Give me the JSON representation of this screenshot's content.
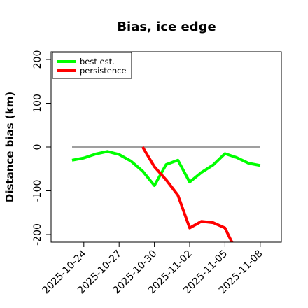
{
  "chart_data": {
    "type": "line",
    "title": "Bias, ice edge",
    "xlabel": "",
    "ylabel": "Distance bias (km)",
    "ylim": [
      -215,
      215
    ],
    "yticks": [
      -200,
      -100,
      0,
      100,
      200
    ],
    "xticks": [
      "2025-10-24",
      "2025-10-27",
      "2025-10-30",
      "2025-11-02",
      "2025-11-05",
      "2025-11-08"
    ],
    "x_start": "2025-10-22",
    "grid": false,
    "legend_position": "top-left",
    "reference_line": {
      "y": 0,
      "x_from": "2025-10-23",
      "x_to": "2025-11-08",
      "color": "#666666"
    },
    "series": [
      {
        "name": "best est.",
        "color": "#00ff00",
        "points": [
          [
            "2025-10-23",
            -30
          ],
          [
            "2025-10-24",
            -25
          ],
          [
            "2025-10-25",
            -16
          ],
          [
            "2025-10-26",
            -10
          ],
          [
            "2025-10-27",
            -17
          ],
          [
            "2025-10-28",
            -32
          ],
          [
            "2025-10-29",
            -55
          ],
          [
            "2025-10-30",
            -88
          ],
          [
            "2025-10-31",
            -40
          ],
          [
            "2025-11-01",
            -30
          ],
          [
            "2025-11-02",
            -80
          ],
          [
            "2025-11-03",
            -58
          ],
          [
            "2025-11-04",
            -41
          ],
          [
            "2025-11-05",
            -15
          ],
          [
            "2025-11-06",
            -24
          ],
          [
            "2025-11-07",
            -37
          ],
          [
            "2025-11-08",
            -42
          ]
        ]
      },
      {
        "name": "persistence",
        "color": "#ff0000",
        "points": [
          [
            "2025-10-29",
            0
          ],
          [
            "2025-10-30",
            -45
          ],
          [
            "2025-10-31",
            -75
          ],
          [
            "2025-11-01",
            -110
          ],
          [
            "2025-11-02",
            -185
          ],
          [
            "2025-11-03",
            -170
          ],
          [
            "2025-11-04",
            -173
          ],
          [
            "2025-11-05",
            -185
          ],
          [
            "2025-11-06",
            -240
          ]
        ]
      }
    ]
  }
}
